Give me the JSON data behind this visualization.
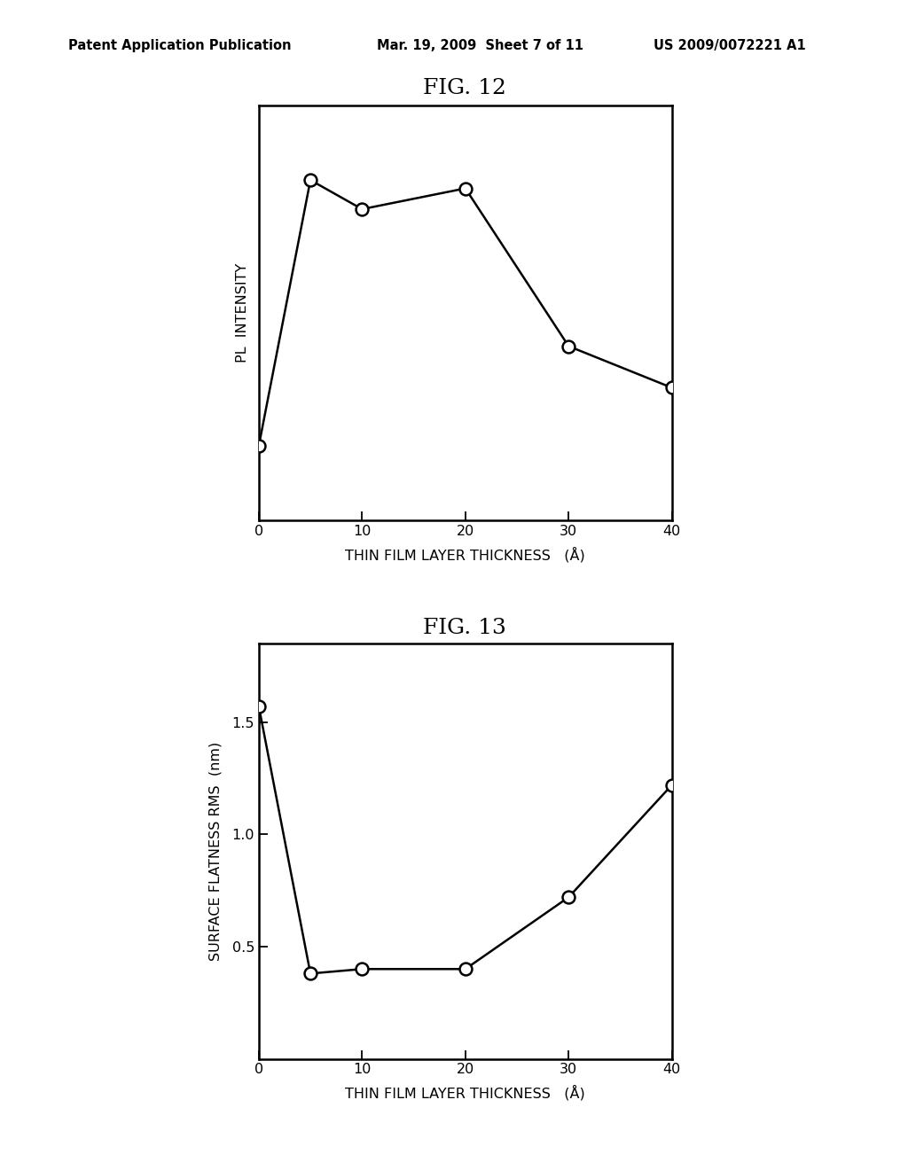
{
  "fig12": {
    "title": "FIG. 12",
    "x": [
      0,
      5,
      10,
      20,
      30,
      40
    ],
    "y": [
      0.18,
      0.82,
      0.75,
      0.8,
      0.42,
      0.32
    ],
    "xlabel": "THIN FILM LAYER THICKNESS   (Å)",
    "ylabel": "PL  INTENSITY",
    "xlim": [
      0,
      40
    ],
    "ylim": [
      0,
      1.0
    ],
    "xticks": [
      0,
      10,
      20,
      30,
      40
    ],
    "yticks": []
  },
  "fig13": {
    "title": "FIG. 13",
    "x": [
      0,
      5,
      10,
      20,
      30,
      40
    ],
    "y": [
      1.57,
      0.38,
      0.4,
      0.4,
      0.72,
      1.22
    ],
    "xlabel": "THIN FILM LAYER THICKNESS   (Å)",
    "ylabel": "SURFACE FLATNESS RMS  (nm)",
    "xlim": [
      0,
      40
    ],
    "ylim": [
      0,
      1.85
    ],
    "xticks": [
      0,
      10,
      20,
      30,
      40
    ],
    "yticks": [
      0.5,
      1.0,
      1.5
    ],
    "ytick_labels": [
      "0.5",
      "1.0",
      "1.5"
    ]
  },
  "header_left": "Patent Application Publication",
  "header_mid": "Mar. 19, 2009  Sheet 7 of 11",
  "header_right": "US 2009/0072221 A1",
  "background_color": "#ffffff",
  "line_color": "#000000",
  "marker_facecolor": "#ffffff",
  "marker_edgecolor": "#000000"
}
